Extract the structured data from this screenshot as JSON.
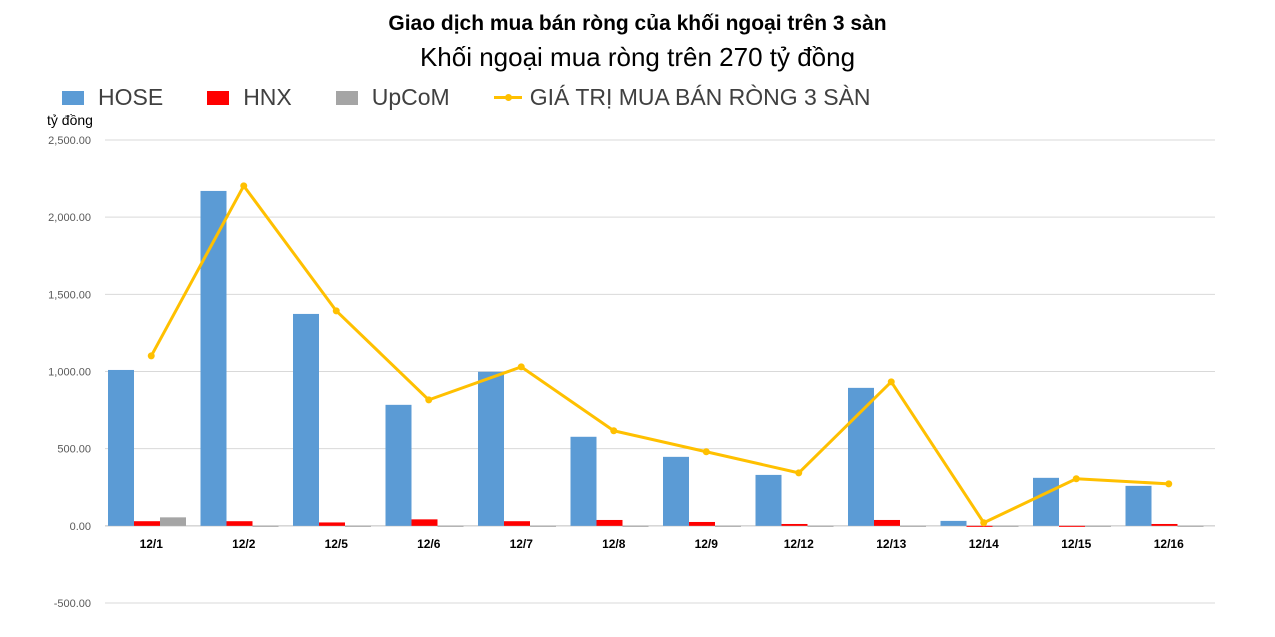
{
  "title": "Giao dịch mua bán ròng của khối ngoại trên 3 sàn",
  "subtitle": "Khối ngoại mua ròng trên 270 tỷ đồng",
  "chart_data": {
    "type": "bar",
    "title": "Giao dịch mua bán ròng của khối ngoại trên 3 sàn",
    "subtitle": "Khối ngoại mua ròng trên 270 tỷ đồng",
    "ylabel": "tỷ đồng",
    "xlabel": "",
    "ylim": [
      -500,
      2500
    ],
    "yticks": [
      -500,
      0,
      500,
      1000,
      1500,
      2000,
      2500
    ],
    "ytick_labels": [
      "-500.00",
      "0.00",
      "500.00",
      "1,000.00",
      "1,500.00",
      "2,000.00",
      "2,500.00"
    ],
    "grid": true,
    "legend_position": "top-left",
    "categories": [
      "12/1",
      "12/2",
      "12/5",
      "12/6",
      "12/7",
      "12/8",
      "12/9",
      "12/12",
      "12/13",
      "12/14",
      "12/15",
      "12/16"
    ],
    "series": [
      {
        "name": "HOSE",
        "type": "bar",
        "color": "#5b9bd5",
        "values": [
          1010,
          2170,
          1373,
          784,
          998,
          577,
          447,
          330,
          894,
          32,
          311,
          259
        ]
      },
      {
        "name": "HNX",
        "type": "bar",
        "color": "#ff0000",
        "values": [
          30,
          30,
          22,
          42,
          30,
          38,
          25,
          12,
          38,
          -5,
          -5,
          12
        ]
      },
      {
        "name": "UpCoM",
        "type": "bar",
        "color": "#a5a5a5",
        "values": [
          55,
          0,
          -3,
          -3,
          -3,
          -3,
          -3,
          -3,
          -3,
          -3,
          -3,
          -3
        ]
      },
      {
        "name": "GIÁ TRỊ MUA BÁN RÒNG 3 SÀN",
        "type": "line",
        "color": "#ffc000",
        "values": [
          1101,
          2203,
          1393,
          816,
          1030,
          616,
          480,
          343,
          933,
          20,
          305,
          272
        ]
      }
    ]
  }
}
